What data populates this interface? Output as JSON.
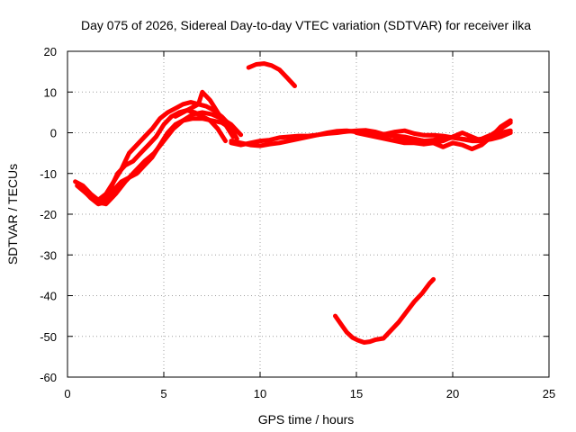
{
  "chart_data": {
    "type": "scatter",
    "title": "Day 075 of 2026, Sidereal Day-to-day VTEC variation (SDTVAR) for receiver ilka",
    "xlabel": "GPS time / hours",
    "ylabel": "SDTVAR / TECUs",
    "xlim": [
      0,
      25
    ],
    "ylim": [
      -60,
      20
    ],
    "xticks": [
      0,
      5,
      10,
      15,
      20,
      25
    ],
    "yticks": [
      -60,
      -50,
      -40,
      -30,
      -20,
      -10,
      0,
      10,
      20
    ],
    "grid": true,
    "color": "#ff0000",
    "series": [
      {
        "name": "track-1",
        "x": [
          0.4,
          0.8,
          1.2,
          1.6,
          2.0,
          2.4,
          2.8,
          3.2,
          3.6,
          4.0,
          4.4,
          4.8,
          5.2,
          5.6,
          6.0,
          6.4,
          6.8,
          7.2,
          7.6,
          8.0,
          8.4,
          8.8
        ],
        "y": [
          -12,
          -13,
          -15,
          -16.5,
          -15,
          -12,
          -9,
          -5,
          -3,
          -1,
          1,
          3.5,
          5,
          6,
          7,
          7.5,
          7,
          6.5,
          5.5,
          4,
          2,
          -1.5
        ]
      },
      {
        "name": "track-2",
        "x": [
          0.5,
          1.0,
          1.5,
          2.0,
          2.5,
          3.0,
          3.5,
          4.0,
          4.5,
          5.0,
          5.5,
          6.0,
          6.5,
          7.0,
          7.5,
          8.0,
          8.5,
          9.0
        ],
        "y": [
          -13,
          -15,
          -17,
          -17.5,
          -15,
          -12,
          -9.5,
          -7,
          -5,
          -2,
          1,
          3,
          4.5,
          5,
          4.5,
          3.5,
          2,
          -0.5
        ]
      },
      {
        "name": "track-3",
        "x": [
          0.8,
          1.2,
          1.6,
          2.0,
          2.4,
          2.8,
          3.2,
          3.6,
          4.0,
          4.4,
          4.8,
          5.2,
          5.6,
          6.0,
          6.5,
          7.0,
          7.5,
          8.0,
          8.5
        ],
        "y": [
          -14,
          -16,
          -17.5,
          -17,
          -14,
          -12,
          -11,
          -10,
          -8,
          -6,
          -3,
          0,
          2,
          3,
          3.5,
          3.5,
          3,
          2.5,
          1
        ]
      },
      {
        "name": "track-4",
        "x": [
          1.8,
          2.2,
          2.6,
          3.0,
          3.4,
          3.8,
          4.2,
          4.6,
          5.0,
          5.4,
          5.8,
          6.2,
          6.6,
          7.0,
          7.4,
          7.8,
          8.2
        ],
        "y": [
          -17,
          -14,
          -10,
          -8,
          -7,
          -5,
          -3,
          -1,
          2,
          4,
          5,
          5.5,
          5,
          4,
          3,
          1,
          -2
        ]
      },
      {
        "name": "track-5",
        "x": [
          5.6,
          6.0,
          6.4,
          6.8,
          7.0,
          7.4,
          7.8,
          8.2,
          8.6
        ],
        "y": [
          4,
          5,
          6,
          7,
          10,
          8,
          5,
          2,
          -1
        ]
      },
      {
        "name": "track-6",
        "x": [
          8.5,
          9.0,
          9.5,
          10.0,
          10.5,
          11.0,
          11.5,
          12.0,
          12.5,
          13.0,
          13.5,
          14.0,
          14.5,
          15.0,
          15.5,
          16.0,
          16.5,
          17.0,
          17.5,
          18.0,
          18.5,
          19.0,
          19.5,
          20.0,
          20.5,
          21.0,
          21.5,
          22.0,
          22.5,
          23.0
        ],
        "y": [
          -2,
          -2.5,
          -3,
          -3.2,
          -2.8,
          -2.5,
          -2,
          -1.5,
          -1,
          -0.5,
          -0.2,
          0,
          0.3,
          0.5,
          0.6,
          0.2,
          -0.5,
          -0.8,
          -1,
          -1.5,
          -2,
          -1.8,
          -1.5,
          -1.2,
          -1.5,
          -1.8,
          -1.5,
          -0.5,
          1,
          2.5
        ]
      },
      {
        "name": "track-7",
        "x": [
          8.5,
          9.0,
          9.5,
          10.0,
          10.5,
          11.0,
          11.5,
          12.0,
          12.5,
          13.0,
          13.5,
          14.0,
          14.5,
          15.0,
          15.5,
          16.0,
          16.5,
          17.0,
          17.5,
          18.0,
          18.5,
          19.0,
          19.5,
          20.0,
          20.5,
          21.0,
          21.5,
          22.0,
          22.5,
          23.0
        ],
        "y": [
          -2.5,
          -3,
          -2.5,
          -2,
          -1.8,
          -1.2,
          -1,
          -0.8,
          -0.8,
          -0.5,
          0,
          0.4,
          0.5,
          0.2,
          -0.3,
          -0.5,
          -0.3,
          0.2,
          0.5,
          -0.2,
          -0.6,
          -0.6,
          -0.8,
          -1.2,
          -1.6,
          -2,
          -2,
          -1.6,
          -1,
          0
        ]
      },
      {
        "name": "track-8",
        "x": [
          15.0,
          15.5,
          16.0,
          16.5,
          17.0,
          17.5,
          18.0,
          18.5,
          19.0,
          19.5,
          20.0,
          20.5,
          21.0,
          21.5,
          22.0,
          22.5,
          23.0
        ],
        "y": [
          0,
          -0.5,
          -1,
          -1.5,
          -2,
          -2.5,
          -2.5,
          -2.8,
          -2.5,
          -2,
          -1,
          0,
          -1,
          -2,
          -1,
          0,
          0.5
        ]
      },
      {
        "name": "track-9",
        "x": [
          17.0,
          17.5,
          18.0,
          18.5,
          19.0,
          19.5,
          20.0,
          20.5,
          21.0,
          21.5,
          22.0,
          22.5,
          23.0
        ],
        "y": [
          -1,
          -1.5,
          -1.5,
          -2,
          -2.5,
          -3.5,
          -2.5,
          -3,
          -4,
          -3,
          -1,
          1.5,
          3
        ]
      },
      {
        "name": "track-10",
        "x": [
          9.4,
          9.8,
          10.2,
          10.6,
          11.0,
          11.4,
          11.8
        ],
        "y": [
          16,
          16.8,
          17,
          16.5,
          15.5,
          13.5,
          11.5
        ]
      },
      {
        "name": "track-11",
        "x": [
          13.9,
          14.2,
          14.5,
          14.8,
          15.1,
          15.4,
          15.7,
          16.0,
          16.4,
          16.8,
          17.2,
          17.6,
          18.0,
          18.4,
          18.8,
          19.0
        ],
        "y": [
          -45,
          -47,
          -49,
          -50.3,
          -51,
          -51.5,
          -51.3,
          -50.8,
          -50.5,
          -48.5,
          -46.5,
          -44,
          -41.5,
          -39.5,
          -37,
          -36
        ]
      }
    ]
  }
}
